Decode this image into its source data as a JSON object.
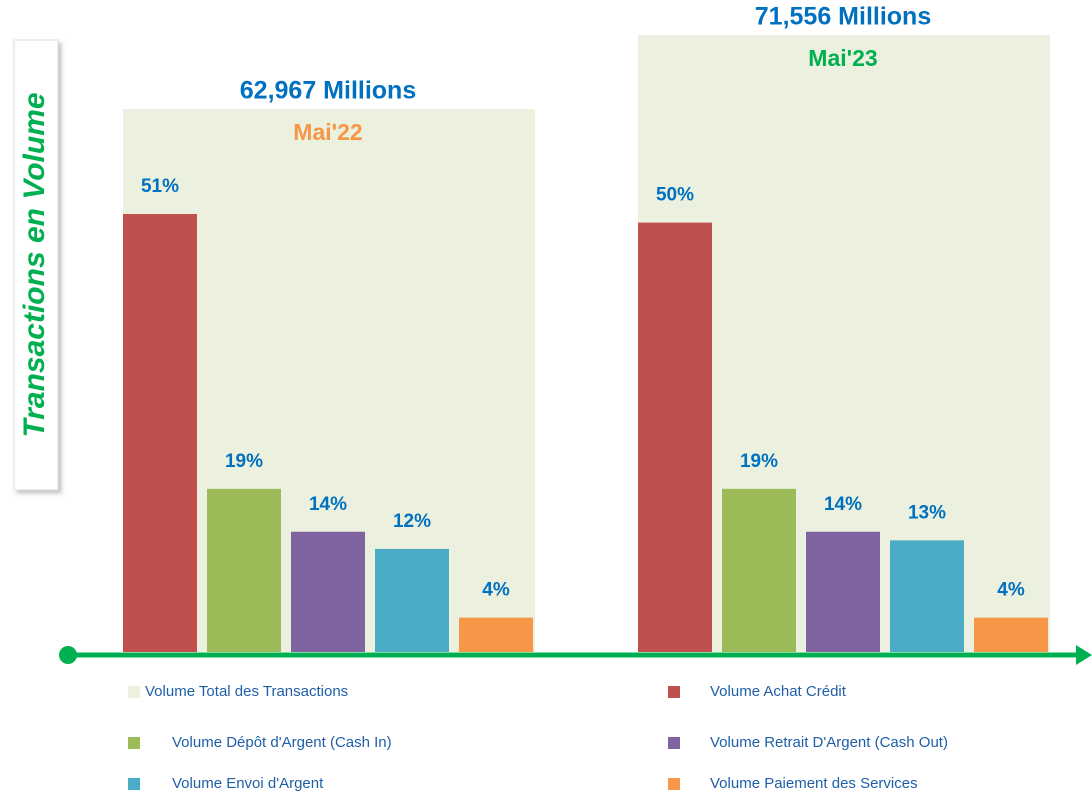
{
  "chart_data": {
    "type": "bar",
    "y_axis_title": "Transactions en Volume",
    "categories": [
      "Mai'22",
      "Mai'23"
    ],
    "category_colors": [
      "#f79646",
      "#00b050"
    ],
    "totals": {
      "name": "Volume Total des Transactions",
      "color": "#ebf1de",
      "values": [
        62967,
        71556
      ],
      "value_labels": [
        "62,967 Millions",
        "71,556 Millions"
      ]
    },
    "series": [
      {
        "name": "Volume Achat Crédit",
        "color": "#c0504d",
        "values": [
          51,
          50
        ],
        "value_labels": [
          "51%",
          "50%"
        ]
      },
      {
        "name": "Volume Dépôt d'Argent (Cash In)",
        "color": "#9bbb59",
        "values": [
          19,
          19
        ],
        "value_labels": [
          "19%",
          "19%"
        ]
      },
      {
        "name": "Volume Retrait D'Argent (Cash Out)",
        "color": "#8064a2",
        "values": [
          14,
          14
        ],
        "value_labels": [
          "14%",
          "14%"
        ]
      },
      {
        "name": "Volume Envoi d'Argent",
        "color": "#4bacc6",
        "values": [
          12,
          13
        ],
        "value_labels": [
          "12%",
          "13%"
        ]
      },
      {
        "name": "Volume Paiement des Services",
        "color": "#f79646",
        "values": [
          4,
          4
        ],
        "value_labels": [
          "4%",
          "4%"
        ]
      }
    ]
  }
}
